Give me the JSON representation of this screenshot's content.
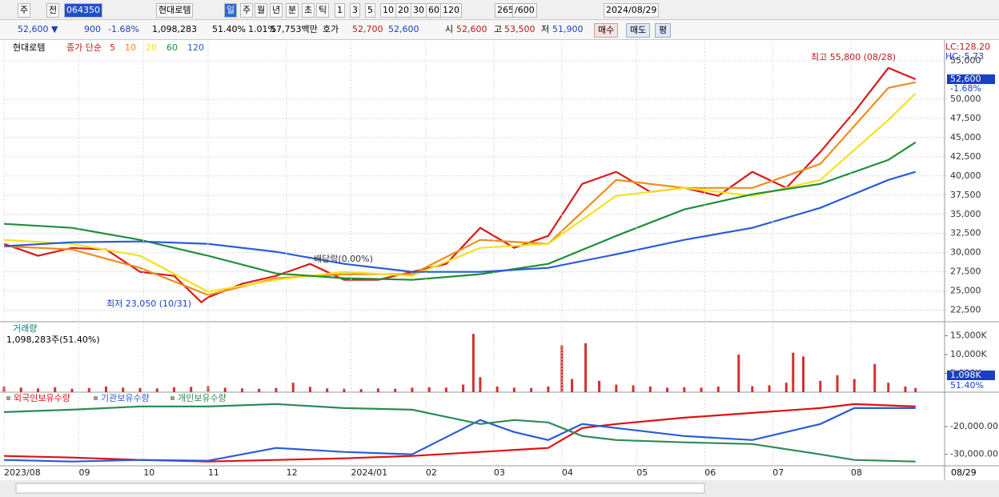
{
  "toolbar": {
    "items": [
      "주",
      "전",
      "064350",
      "현대로템",
      "일",
      "주",
      "월",
      "년",
      "분",
      "초",
      "틱",
      "1",
      "3",
      "5",
      "10",
      "20",
      "30",
      "60",
      "120",
      "265",
      "/600",
      "2024/08/29"
    ]
  },
  "info_bar": {
    "items": [
      "52,600 ▼",
      "900",
      "-1.68%",
      "1,098,283",
      "51.40%",
      "1.01%",
      "57,753백만",
      "호가",
      "52,700",
      "52,600",
      "시",
      "52,600",
      "고",
      "53,500",
      "저",
      "51,900",
      "매수",
      "매도",
      "평"
    ]
  },
  "chart_data": [
    {
      "type": "line",
      "title": "현대로템",
      "legend_title": "종가 단순",
      "xlim": [
        0,
        269
      ],
      "ylim": [
        21000,
        57500
      ],
      "yticks": [
        {
          "value": 22500,
          "label": "22,500"
        },
        {
          "value": 25000,
          "label": "25,000"
        },
        {
          "value": 27500,
          "label": "27,500"
        },
        {
          "value": 30000,
          "label": "30,000"
        },
        {
          "value": 32500,
          "label": "32,500"
        },
        {
          "value": 35000,
          "label": "35,000"
        },
        {
          "value": 37500,
          "label": "37,500"
        },
        {
          "value": 40000,
          "label": "40,000"
        },
        {
          "value": 42500,
          "label": "42,500"
        },
        {
          "value": 45000,
          "label": "45,000"
        },
        {
          "value": 47500,
          "label": "47,500"
        },
        {
          "value": 50000,
          "label": "50,000"
        },
        {
          "value": 55000,
          "label": "55,000"
        }
      ],
      "grid": true,
      "series": [
        {
          "name": "5",
          "color": "#d81b1b",
          "x": [
            0,
            10,
            20,
            30,
            40,
            50,
            58,
            60,
            70,
            80,
            90,
            100,
            110,
            120,
            130,
            140,
            150,
            160,
            170,
            180,
            190,
            200,
            210,
            220,
            230,
            240,
            250,
            260,
            268
          ],
          "values": [
            31150,
            29590,
            30630,
            30420,
            27500,
            26980,
            23540,
            24170,
            25940,
            26980,
            28540,
            26460,
            26460,
            27500,
            28540,
            33230,
            30630,
            32190,
            38960,
            40530,
            37920,
            38440,
            37400,
            40530,
            38440,
            43130,
            48340,
            54070,
            52600
          ]
        },
        {
          "name": "10",
          "color": "#f08c1a",
          "x": [
            0,
            20,
            40,
            60,
            80,
            100,
            120,
            140,
            160,
            180,
            200,
            220,
            240,
            260,
            268
          ],
          "values": [
            30840,
            30420,
            28020,
            24480,
            26670,
            27190,
            27190,
            31670,
            31150,
            39480,
            38440,
            38440,
            41570,
            51470,
            52200
          ]
        },
        {
          "name": "20",
          "color": "#f2e21d",
          "x": [
            0,
            20,
            40,
            60,
            80,
            100,
            120,
            140,
            160,
            180,
            200,
            220,
            240,
            260,
            268
          ],
          "values": [
            31670,
            31150,
            29590,
            24900,
            26460,
            27500,
            26980,
            30630,
            31150,
            37400,
            38440,
            37400,
            39480,
            47300,
            50740
          ]
        },
        {
          "name": "60",
          "color": "#1e8f3a",
          "x": [
            0,
            20,
            40,
            60,
            80,
            100,
            120,
            140,
            160,
            180,
            200,
            220,
            240,
            260,
            268
          ],
          "values": [
            33750,
            33230,
            31670,
            29590,
            27290,
            26670,
            26460,
            27190,
            28540,
            32190,
            35630,
            37610,
            38960,
            42090,
            44380
          ]
        },
        {
          "name": "120",
          "color": "#2a5bd7",
          "x": [
            0,
            20,
            40,
            60,
            80,
            100,
            120,
            140,
            160,
            180,
            200,
            220,
            240,
            260,
            268
          ],
          "values": [
            30840,
            31360,
            31460,
            31150,
            30110,
            28540,
            27500,
            27500,
            28020,
            29790,
            31670,
            33230,
            35840,
            39480,
            40530
          ]
        }
      ],
      "annotations": [
        "최고 55,800 (08/28)",
        "최저 23,050 (10/31)",
        "배당락(0.00%)",
        "LC:128.20",
        "HC:-5.73",
        "52,600",
        "-1.68%"
      ]
    },
    {
      "type": "bar",
      "title": "거래량",
      "subtitle": "1,098,283주(51.40%)",
      "xlim": [
        0,
        269
      ],
      "ylim": [
        0,
        18100
      ],
      "yticks": [
        {
          "value": 5000,
          "label": "5,000K"
        },
        {
          "value": 10000,
          "label": "10,000K"
        },
        {
          "value": 15000,
          "label": "15,000K"
        }
      ],
      "color": "#d32f2f",
      "x": [
        0,
        5,
        10,
        15,
        20,
        25,
        30,
        35,
        40,
        45,
        50,
        55,
        60,
        65,
        70,
        75,
        80,
        85,
        90,
        95,
        100,
        105,
        110,
        115,
        120,
        125,
        130,
        135,
        138,
        140,
        145,
        150,
        155,
        160,
        164,
        167,
        171,
        175,
        180,
        185,
        190,
        195,
        200,
        205,
        210,
        216,
        220,
        225,
        230,
        232,
        235,
        240,
        245,
        250,
        256,
        260,
        265,
        268
      ],
      "values": [
        1500,
        1200,
        1000,
        1300,
        900,
        1100,
        1500,
        1200,
        1100,
        1000,
        1300,
        1400,
        1600,
        1200,
        1000,
        900,
        1100,
        2500,
        1400,
        1000,
        900,
        800,
        1000,
        900,
        1200,
        1300,
        1200,
        2000,
        15500,
        4000,
        1500,
        1200,
        1100,
        1500,
        12500,
        3500,
        13000,
        3000,
        2000,
        1800,
        1500,
        1200,
        1300,
        1200,
        1500,
        10000,
        1600,
        1800,
        2500,
        10500,
        9500,
        3000,
        4500,
        3500,
        7500,
        2500,
        1500,
        1098
      ],
      "annotations": [
        "1,098K",
        "51.40%"
      ]
    },
    {
      "type": "line",
      "xlim": [
        0,
        269
      ],
      "ylim": [
        -34100,
        -8300
      ],
      "yticks": [
        {
          "value": -20000,
          "label": "-20,000.00"
        },
        {
          "value": -30000,
          "label": "-30,000.00"
        }
      ],
      "xticks": [
        {
          "value": 0,
          "label": "2023/08"
        },
        {
          "value": 22,
          "label": "09"
        },
        {
          "value": 41,
          "label": "10"
        },
        {
          "value": 60,
          "label": "11"
        },
        {
          "value": 83,
          "label": "12"
        },
        {
          "value": 102,
          "label": "2024/01"
        },
        {
          "value": 124,
          "label": "02"
        },
        {
          "value": 144,
          "label": "03"
        },
        {
          "value": 164,
          "label": "04"
        },
        {
          "value": 186,
          "label": "05"
        },
        {
          "value": 206,
          "label": "06"
        },
        {
          "value": 226,
          "label": "07"
        },
        {
          "value": 249,
          "label": "08"
        }
      ],
      "last_date_label": "08/29",
      "series": [
        {
          "name": "외국인보유수량",
          "color": "#e01010",
          "x": [
            0,
            20,
            40,
            60,
            80,
            100,
            120,
            140,
            160,
            170,
            180,
            200,
            220,
            240,
            250,
            268
          ],
          "values": [
            -30570,
            -31140,
            -32000,
            -32570,
            -32000,
            -31430,
            -30570,
            -29140,
            -27710,
            -20570,
            -19140,
            -16860,
            -15140,
            -13430,
            -12000,
            -12860
          ]
        },
        {
          "name": "기관보유수량",
          "color": "#2a5bd7",
          "x": [
            0,
            20,
            40,
            60,
            80,
            100,
            120,
            140,
            150,
            160,
            170,
            180,
            200,
            220,
            240,
            250,
            268
          ],
          "values": [
            -32000,
            -32570,
            -32000,
            -32290,
            -27710,
            -29140,
            -30000,
            -17710,
            -22000,
            -24860,
            -19140,
            -20570,
            -23430,
            -24860,
            -19140,
            -13430,
            -13430
          ]
        },
        {
          "name": "개인보유수량",
          "color": "#2e8b57",
          "x": [
            0,
            20,
            40,
            60,
            80,
            100,
            120,
            140,
            150,
            160,
            170,
            180,
            200,
            220,
            240,
            250,
            268
          ],
          "values": [
            -14860,
            -14000,
            -12860,
            -12860,
            -12000,
            -13430,
            -14000,
            -19140,
            -17710,
            -18570,
            -23430,
            -24860,
            -25710,
            -26290,
            -30000,
            -32000,
            -32570
          ]
        }
      ]
    }
  ]
}
